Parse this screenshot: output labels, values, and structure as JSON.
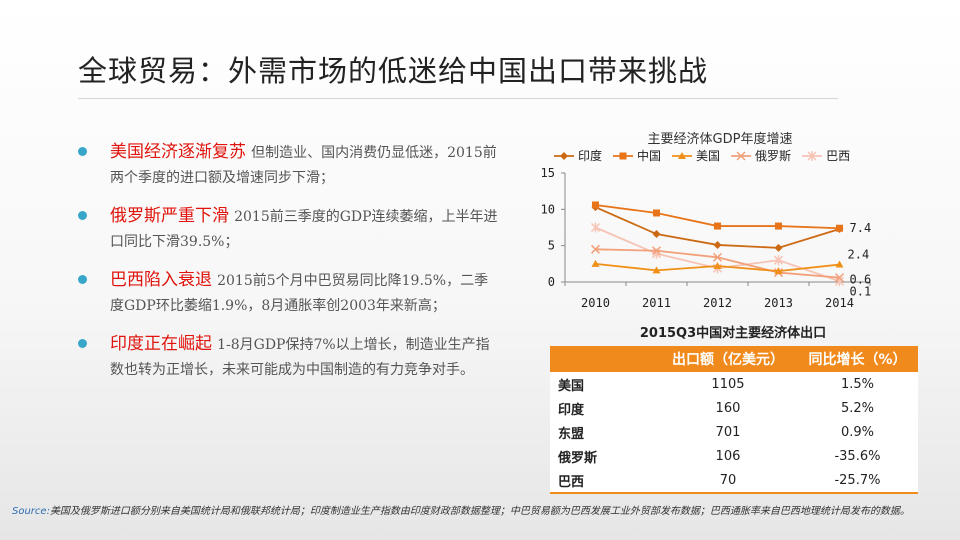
{
  "slide": {
    "title": "全球贸易：外需市场的低迷给中国出口带来挑战"
  },
  "bullets": [
    {
      "head": "美国经济逐渐复苏",
      "body": "但制造业、国内消费仍显低迷，2015前两个季度的进口额及增速同步下滑；"
    },
    {
      "head": "俄罗斯严重下滑",
      "body": "2015前三季度的GDP连续萎缩，上半年进口同比下滑39.5%；"
    },
    {
      "head": "巴西陷入衰退",
      "body": "2015前5个月中巴贸易同比降19.5%，二季度GDP环比萎缩1.9%，8月通胀率创2003年来新高；"
    },
    {
      "head": "印度正在崛起",
      "body": "1-8月GDP保持7%以上增长，制造业生产指数也转为正增长，未来可能成为中国制造的有力竞争对手。"
    }
  ],
  "colors": {
    "accent_orange": "#f18a1c",
    "headline_red": "#e0140c",
    "bullet_blue": "#37a7c9",
    "india": "#cc6a14",
    "china": "#e8741a",
    "usa": "#f09018",
    "russia": "#f2a07a",
    "brazil": "#f7c3b4"
  },
  "chart_data": {
    "type": "line",
    "title": "主要经济体GDP年度增速",
    "x": [
      2010,
      2011,
      2012,
      2013,
      2014
    ],
    "ylim": [
      0,
      15
    ],
    "yticks": [
      0,
      5,
      10,
      15
    ],
    "series": [
      {
        "name": "印度",
        "marker": "diamond",
        "color": "#cc6a14",
        "values": [
          10.3,
          6.6,
          5.1,
          4.7,
          7.3
        ]
      },
      {
        "name": "中国",
        "marker": "square",
        "color": "#e8741a",
        "values": [
          10.6,
          9.5,
          7.7,
          7.7,
          7.4
        ]
      },
      {
        "name": "美国",
        "marker": "triangle",
        "color": "#f09018",
        "values": [
          2.5,
          1.6,
          2.2,
          1.5,
          2.4
        ]
      },
      {
        "name": "俄罗斯",
        "marker": "x",
        "color": "#f2a07a",
        "values": [
          4.5,
          4.3,
          3.4,
          1.3,
          0.6
        ]
      },
      {
        "name": "巴西",
        "marker": "star",
        "color": "#f7c3b4",
        "values": [
          7.5,
          3.9,
          1.9,
          3.0,
          0.1
        ]
      }
    ],
    "data_labels": [
      "7.4",
      "2.4",
      "0.6",
      "0.1"
    ]
  },
  "table": {
    "title": "2015Q3中国对主要经济体出口",
    "headers": [
      "",
      "出口额（亿美元）",
      "同比增长（%）"
    ],
    "rows": [
      {
        "name": "美国",
        "amount": "1105",
        "growth": "1.5%"
      },
      {
        "name": "印度",
        "amount": "160",
        "growth": "5.2%"
      },
      {
        "name": "东盟",
        "amount": "701",
        "growth": "0.9%"
      },
      {
        "name": "俄罗斯",
        "amount": "106",
        "growth": "-35.6%"
      },
      {
        "name": "巴西",
        "amount": "70",
        "growth": "-25.7%"
      }
    ]
  },
  "source": {
    "label": "Source:",
    "text": "美国及俄罗斯进口额分别来自美国统计局和俄联邦统计局；印度制造业生产指数由印度财政部数据整理；中巴贸易额为巴西发展工业外贸部发布数据；巴西通胀率来自巴西地理统计局发布的数据。"
  }
}
